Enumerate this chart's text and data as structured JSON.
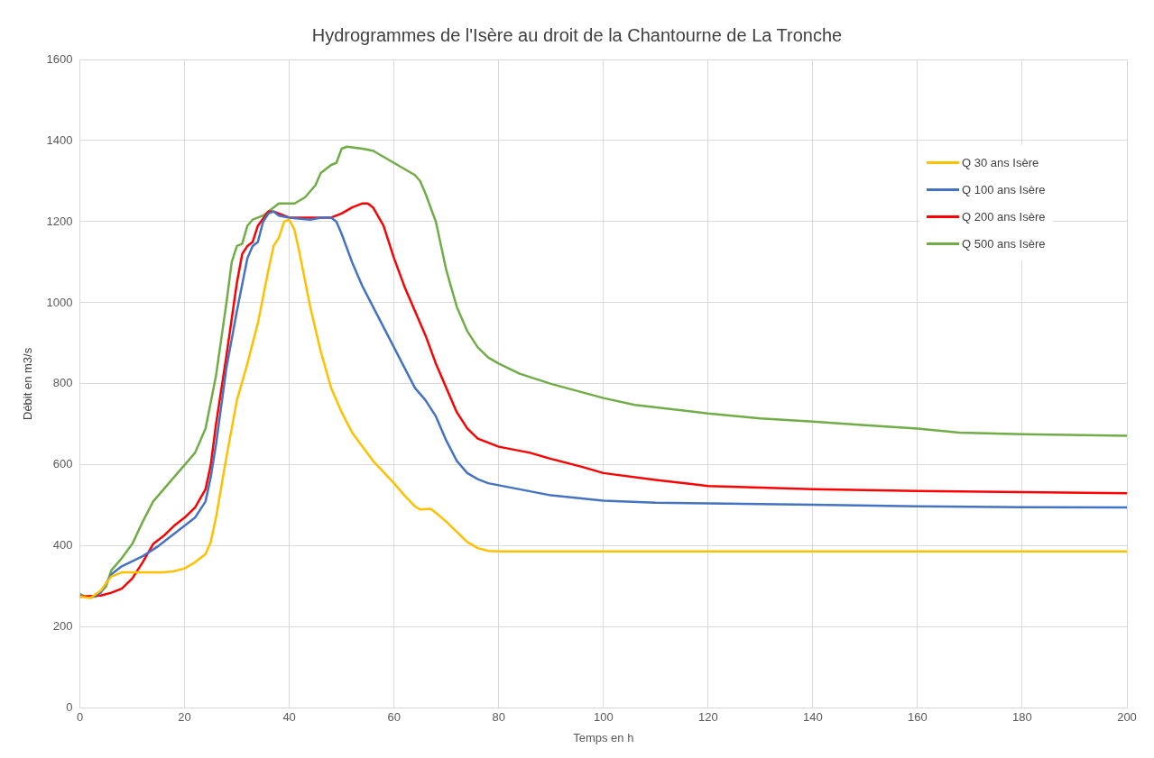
{
  "chart_data": {
    "type": "line",
    "title": "Hydrogrammes de l'Isère au droit de la Chantourne de La Tronche",
    "xlabel": "Temps en h",
    "ylabel": "Débit en m3/s",
    "xlim": [
      0,
      200
    ],
    "xticks": [
      0,
      20,
      40,
      60,
      80,
      100,
      120,
      140,
      160,
      180,
      200
    ],
    "ylim": [
      0,
      1600
    ],
    "yticks": [
      0,
      200,
      400,
      600,
      800,
      1000,
      1200,
      1400,
      1600
    ],
    "grid": true,
    "legend": "right",
    "marker": "none",
    "line_style": "solid",
    "series": [
      {
        "name": "Q 30 ans Isère",
        "color": "#ffc000",
        "x": [
          0,
          2,
          4,
          6,
          8,
          12,
          16,
          18,
          20,
          22,
          24,
          25,
          26,
          28,
          30,
          32,
          34,
          36,
          37,
          38,
          39,
          40,
          41,
          42,
          44,
          46,
          48,
          50,
          52,
          56,
          60,
          62,
          64,
          65,
          67,
          68,
          70,
          72,
          74,
          76,
          78,
          80,
          200
        ],
        "values": [
          275,
          272,
          290,
          325,
          335,
          335,
          335,
          338,
          345,
          360,
          380,
          410,
          470,
          620,
          760,
          850,
          950,
          1080,
          1140,
          1160,
          1200,
          1205,
          1180,
          1120,
          990,
          880,
          790,
          730,
          680,
          610,
          555,
          525,
          498,
          490,
          492,
          482,
          460,
          435,
          410,
          395,
          388,
          387,
          387
        ]
      },
      {
        "name": "Q 100 ans Isère",
        "color": "#4472c4",
        "x": [
          2,
          4,
          6,
          8,
          12,
          15,
          18,
          20,
          22,
          24,
          25,
          26,
          28,
          30,
          32,
          33,
          34,
          35,
          36,
          37,
          38,
          40,
          44,
          46,
          48,
          49,
          50,
          52,
          54,
          56,
          58,
          60,
          62,
          64,
          65,
          66,
          68,
          70,
          72,
          74,
          76,
          78,
          80,
          84,
          90,
          100,
          110,
          120,
          140,
          160,
          180,
          200
        ],
        "values": [
          272,
          285,
          330,
          350,
          375,
          400,
          430,
          450,
          470,
          510,
          570,
          650,
          840,
          980,
          1110,
          1140,
          1150,
          1200,
          1220,
          1225,
          1215,
          1210,
          1205,
          1210,
          1210,
          1200,
          1170,
          1100,
          1040,
          990,
          940,
          890,
          840,
          790,
          775,
          760,
          720,
          660,
          610,
          580,
          565,
          555,
          550,
          540,
          525,
          512,
          507,
          505,
          502,
          498,
          496,
          495
        ]
      },
      {
        "name": "Q 200 ans Isère",
        "color": "#ff0000",
        "x": [
          0,
          4,
          6,
          8,
          10,
          12,
          14,
          16,
          18,
          20,
          22,
          24,
          25,
          26,
          28,
          30,
          31,
          32,
          33,
          34,
          36,
          37,
          38,
          40,
          44,
          48,
          50,
          52,
          54,
          55,
          56,
          58,
          60,
          62,
          64,
          66,
          68,
          70,
          72,
          74,
          76,
          78,
          80,
          86,
          90,
          96,
          100,
          110,
          120,
          140,
          160,
          180,
          200
        ],
        "values": [
          275,
          278,
          285,
          295,
          320,
          360,
          405,
          425,
          450,
          470,
          495,
          540,
          600,
          700,
          870,
          1050,
          1120,
          1140,
          1150,
          1190,
          1225,
          1225,
          1220,
          1210,
          1210,
          1210,
          1220,
          1235,
          1245,
          1245,
          1235,
          1190,
          1110,
          1040,
          980,
          920,
          850,
          790,
          730,
          690,
          665,
          655,
          645,
          630,
          615,
          595,
          580,
          563,
          548,
          540,
          536,
          533,
          530
        ]
      },
      {
        "name": "Q 500 ans Isère",
        "color": "#70ad47",
        "x": [
          0,
          1,
          3,
          5,
          6,
          8,
          10,
          12,
          14,
          16,
          18,
          20,
          22,
          24,
          26,
          28,
          29,
          30,
          31,
          32,
          33,
          35,
          36,
          38,
          41,
          43,
          45,
          46,
          48,
          49,
          50,
          51,
          54,
          56,
          58,
          60,
          62,
          64,
          65,
          66,
          68,
          70,
          72,
          74,
          76,
          78,
          80,
          84,
          90,
          100,
          106,
          120,
          130,
          140,
          150,
          160,
          168,
          180,
          200
        ],
        "values": [
          282,
          275,
          275,
          300,
          340,
          370,
          405,
          460,
          510,
          540,
          570,
          600,
          630,
          690,
          820,
          1000,
          1100,
          1140,
          1145,
          1190,
          1205,
          1215,
          1225,
          1245,
          1245,
          1260,
          1290,
          1320,
          1340,
          1345,
          1380,
          1385,
          1380,
          1375,
          1360,
          1345,
          1330,
          1315,
          1300,
          1270,
          1200,
          1080,
          990,
          930,
          890,
          865,
          850,
          825,
          800,
          765,
          748,
          727,
          715,
          707,
          698,
          690,
          680,
          676,
          672
        ]
      }
    ]
  }
}
